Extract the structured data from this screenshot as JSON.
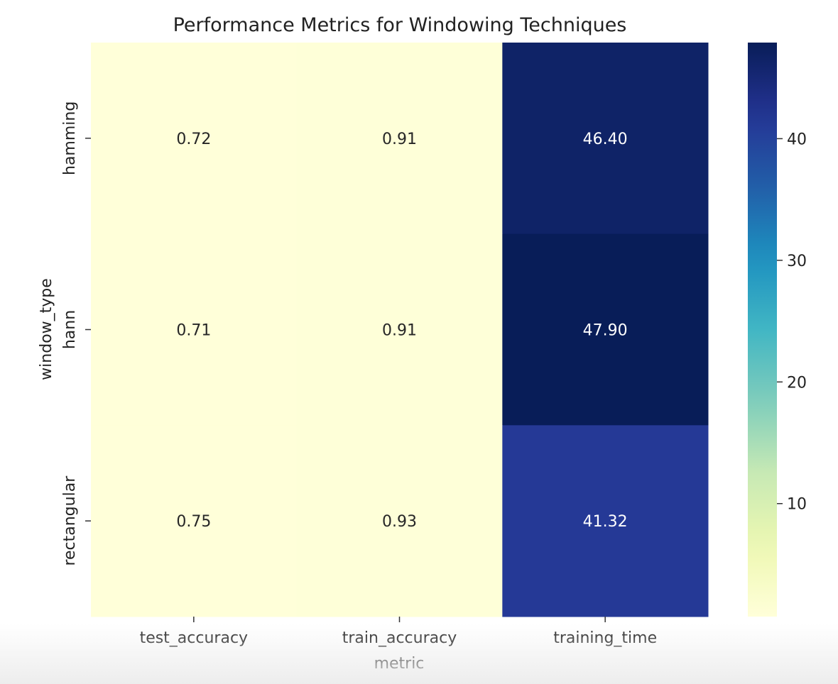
{
  "chart_data": {
    "type": "heatmap",
    "title": "Performance Metrics for Windowing Techniques",
    "xlabel": "metric",
    "ylabel": "window_type",
    "columns": [
      "test_accuracy",
      "train_accuracy",
      "training_time"
    ],
    "rows": [
      "hamming",
      "hann",
      "rectangular"
    ],
    "values": [
      [
        0.72,
        0.91,
        46.4
      ],
      [
        0.71,
        0.91,
        47.9
      ],
      [
        0.75,
        0.93,
        41.32
      ]
    ],
    "value_labels": [
      [
        "0.72",
        "0.91",
        "46.40"
      ],
      [
        "0.71",
        "0.91",
        "47.90"
      ],
      [
        "0.75",
        "0.93",
        "41.32"
      ]
    ],
    "colormap": "YlGnBu",
    "colorbar": {
      "range": [
        0.71,
        47.9
      ],
      "ticks": [
        10,
        20,
        30,
        40
      ],
      "tick_labels": [
        "10",
        "20",
        "30",
        "40"
      ]
    }
  }
}
